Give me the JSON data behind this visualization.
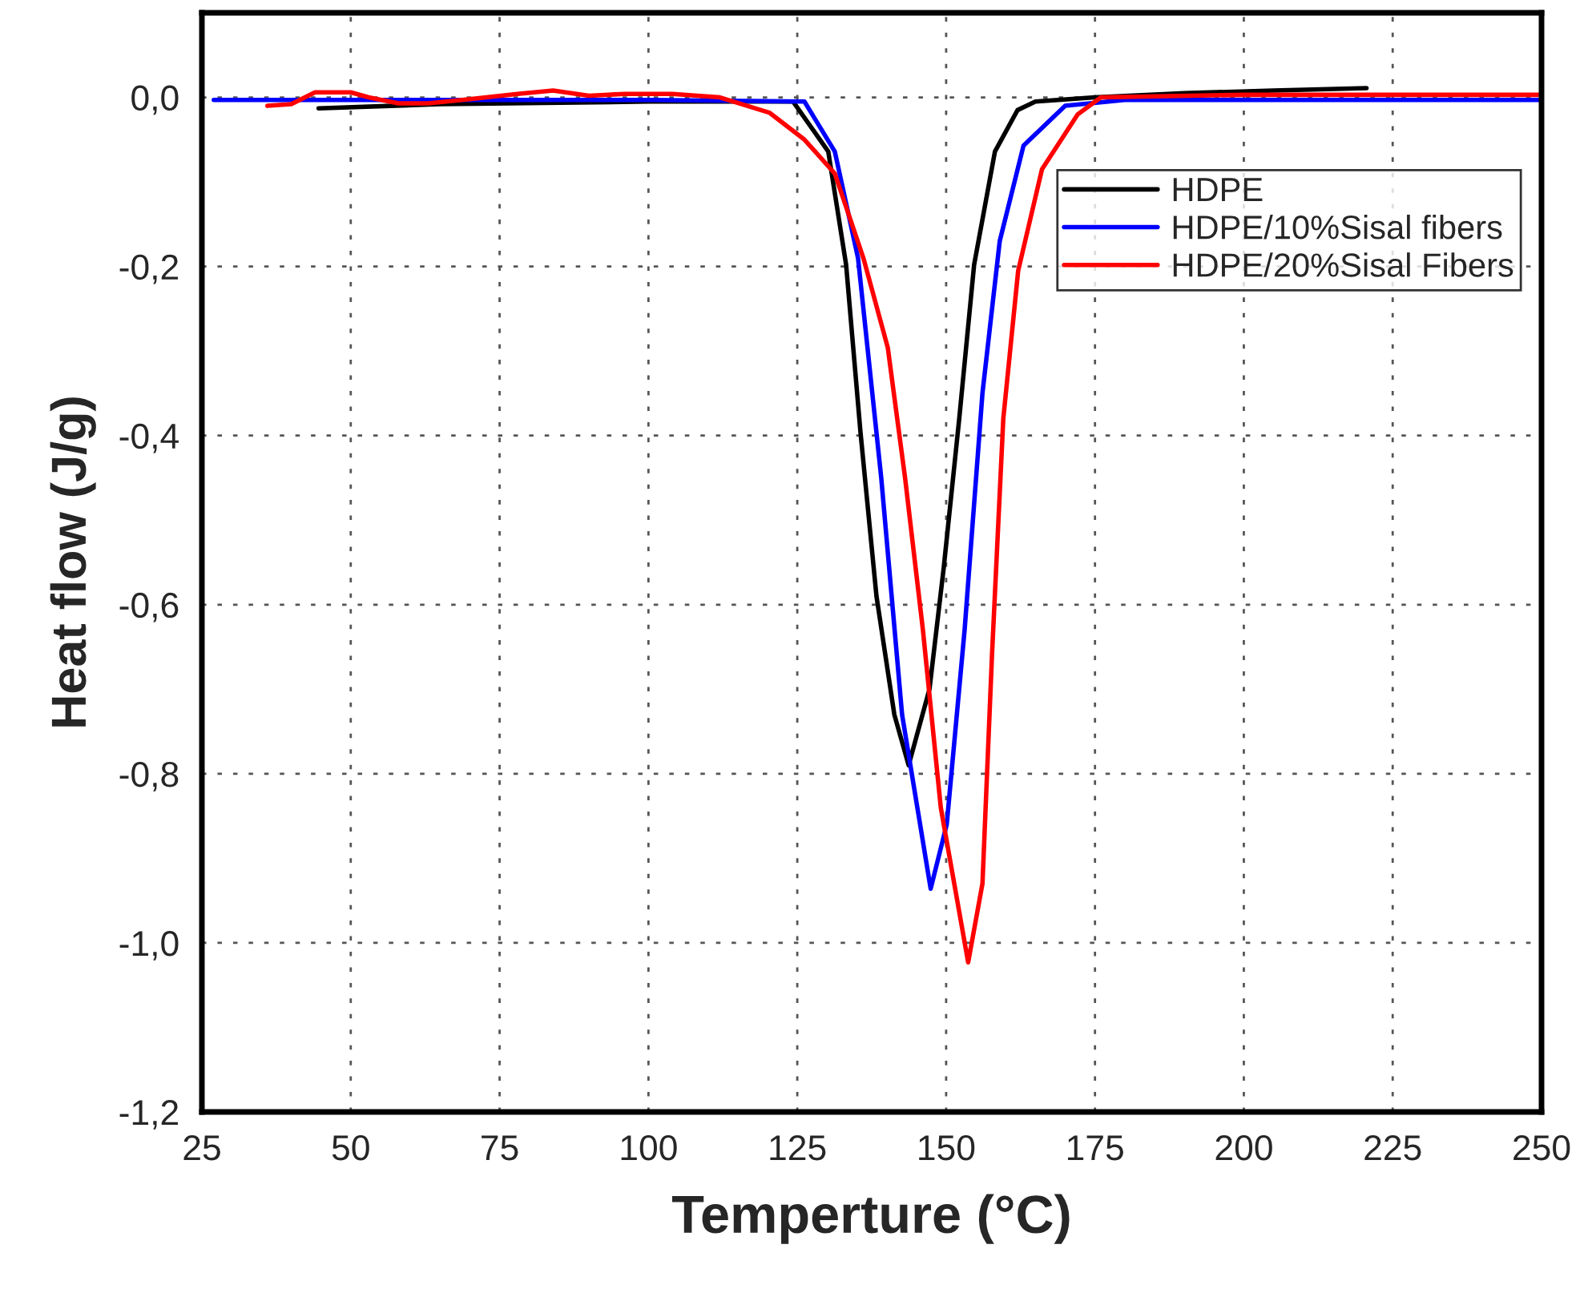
{
  "chart_data": {
    "type": "line",
    "xlabel": "Temperture (°C)",
    "ylabel": "Heat flow (J/g)",
    "xlim": [
      25,
      250
    ],
    "xticks": [
      25,
      50,
      75,
      100,
      125,
      150,
      175,
      200,
      225,
      250
    ],
    "ylim": [
      -1.2,
      0.1
    ],
    "yticks": [
      {
        "value": -1.2,
        "label": "-1,2"
      },
      {
        "value": -1.0,
        "label": "-1,0"
      },
      {
        "value": -0.8,
        "label": "-0,8"
      },
      {
        "value": -0.6,
        "label": "-0,6"
      },
      {
        "value": -0.4,
        "label": "-0,4"
      },
      {
        "value": -0.2,
        "label": "-0,2"
      },
      {
        "value": 0.0,
        "label": "0,0"
      }
    ],
    "grid": true,
    "legend": "top right",
    "marker": "none",
    "line_style": "solid",
    "series": [
      {
        "name": "HDPE",
        "color": "#000000",
        "x": [
          44.6,
          65,
          100,
          124.3,
          130.2,
          133.2,
          135.6,
          138.3,
          141.3,
          143.7,
          147.2,
          149.6,
          152.2,
          154.7,
          158.2,
          162,
          165,
          175,
          190,
          205,
          220.6
        ],
        "values": [
          -0.013,
          -0.008,
          -0.005,
          -0.005,
          -0.064,
          -0.198,
          -0.395,
          -0.59,
          -0.73,
          -0.79,
          -0.7,
          -0.556,
          -0.38,
          -0.198,
          -0.064,
          -0.015,
          -0.005,
          0.0,
          0.005,
          0.008,
          0.011
        ]
      },
      {
        "name": "HDPE/10%Sisal fibers",
        "color": "#0000ff",
        "x": [
          27,
          60,
          100,
          126.2,
          131.3,
          135.2,
          139.1,
          142.6,
          147.4,
          150.1,
          153.1,
          156.1,
          159.0,
          163,
          170,
          180,
          250
        ],
        "values": [
          -0.003,
          -0.003,
          -0.003,
          -0.005,
          -0.064,
          -0.19,
          -0.45,
          -0.73,
          -0.936,
          -0.86,
          -0.63,
          -0.35,
          -0.17,
          -0.057,
          -0.01,
          -0.003,
          -0.003
        ]
      },
      {
        "name": "HDPE/20%Sisal Fibers",
        "color": "#ff0000",
        "x": [
          36,
          40,
          44,
          50,
          53,
          58,
          63,
          70,
          78,
          84,
          90,
          96,
          104,
          112,
          120.3,
          126.2,
          131.3,
          136.1,
          140.2,
          143.1,
          146.1,
          149.1,
          153.7,
          156.1,
          157.7,
          159.6,
          162.1,
          166.1,
          172.1,
          176,
          200,
          250
        ],
        "values": [
          -0.01,
          -0.008,
          0.006,
          0.006,
          0.0,
          -0.007,
          -0.007,
          -0.002,
          0.004,
          0.008,
          0.002,
          0.004,
          0.004,
          0.0,
          -0.018,
          -0.05,
          -0.09,
          -0.19,
          -0.296,
          -0.45,
          -0.63,
          -0.84,
          -1.023,
          -0.93,
          -0.66,
          -0.38,
          -0.205,
          -0.085,
          -0.02,
          0.0,
          0.003,
          0.003
        ]
      }
    ]
  }
}
